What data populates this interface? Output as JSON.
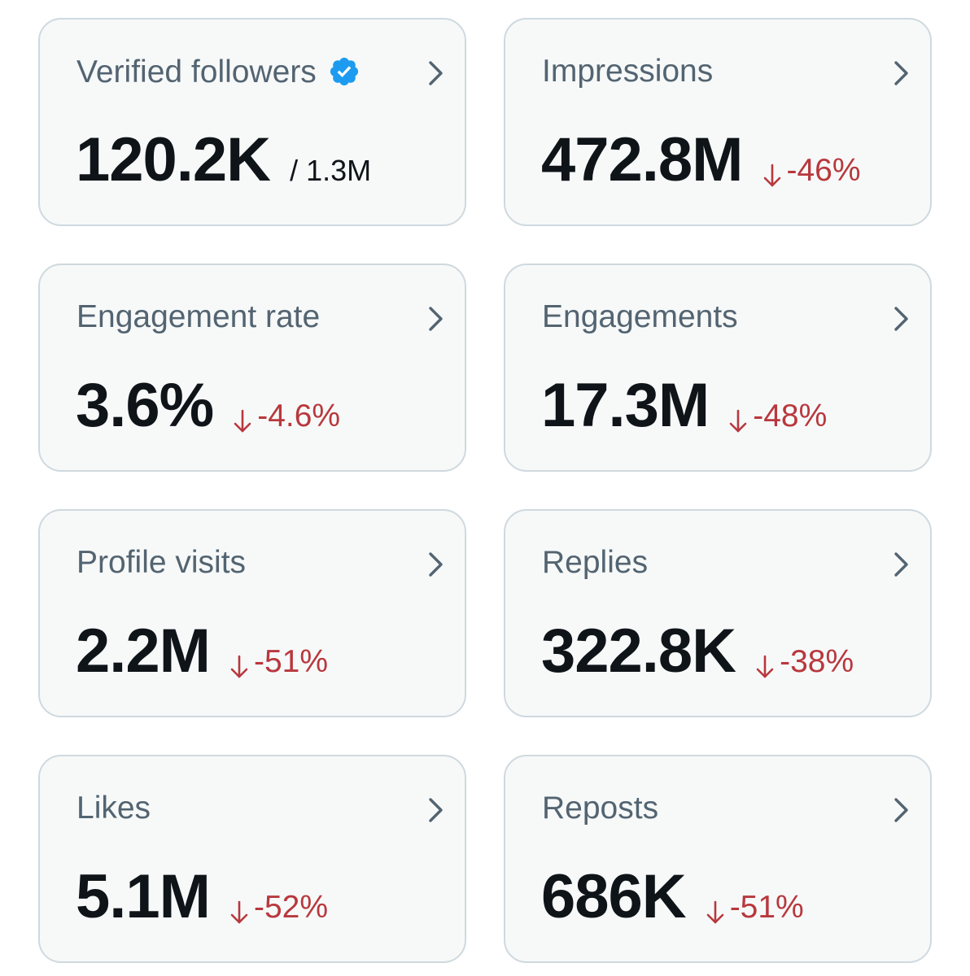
{
  "colors": {
    "card_background": "#f7f9f9",
    "card_border": "#cfd9de",
    "title_text": "#536471",
    "value_text": "#0f1419",
    "negative_delta": "#b8383d",
    "verified_badge": "#1d9bf0"
  },
  "cards": [
    {
      "title": "Verified followers",
      "icon": "verified-badge-icon",
      "value": "120.2K",
      "total": "/ 1.3M"
    },
    {
      "title": "Impressions",
      "value": "472.8M",
      "delta": "-46%",
      "delta_icon": "down-arrow-icon"
    },
    {
      "title": "Engagement rate",
      "value": "3.6%",
      "delta": "-4.6%",
      "delta_icon": "down-arrow-icon"
    },
    {
      "title": "Engagements",
      "value": "17.3M",
      "delta": "-48%",
      "delta_icon": "down-arrow-icon"
    },
    {
      "title": "Profile visits",
      "value": "2.2M",
      "delta": "-51%",
      "delta_icon": "down-arrow-icon"
    },
    {
      "title": "Replies",
      "value": "322.8K",
      "delta": "-38%",
      "delta_icon": "down-arrow-icon"
    },
    {
      "title": "Likes",
      "value": "5.1M",
      "delta": "-52%",
      "delta_icon": "down-arrow-icon"
    },
    {
      "title": "Reposts",
      "value": "686K",
      "delta": "-51%",
      "delta_icon": "down-arrow-icon"
    }
  ]
}
